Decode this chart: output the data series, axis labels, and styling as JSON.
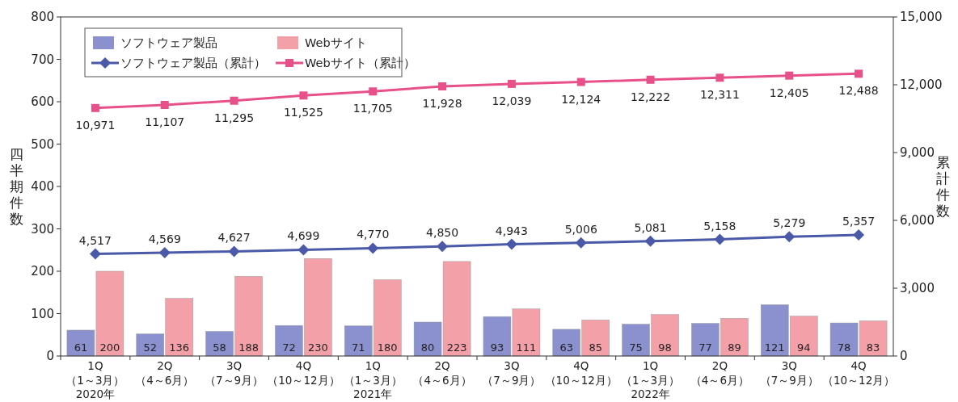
{
  "chart_data": {
    "type": "bar",
    "ylabel": "四半期件数",
    "y2label": "累計件数",
    "categories": [
      "1Q\n（1～3月）\n2020年",
      "2Q\n（4～6月）",
      "3Q\n（7～9月）",
      "4Q\n（10～12月）",
      "1Q\n（1～3月）\n2021年",
      "2Q\n（4～6月）",
      "3Q\n（7～9月）",
      "4Q\n（10～12月）",
      "1Q\n（1～3月）\n2022年",
      "2Q\n（4～6月）",
      "3Q\n（7～9月）",
      "4Q\n（10～12月）"
    ],
    "series": [
      {
        "name": "ソフトウェア製品",
        "color": "#8b90cf",
        "values": [
          61,
          52,
          58,
          72,
          71,
          80,
          93,
          63,
          75,
          77,
          121,
          78
        ]
      },
      {
        "name": "Webサイト",
        "color": "#f4a0a8",
        "values": [
          200,
          136,
          188,
          230,
          180,
          223,
          111,
          85,
          98,
          89,
          94,
          83
        ]
      },
      {
        "name": "ソフトウェア製品（累計）",
        "type": "line",
        "axis": "y2",
        "marker": "diamond",
        "color": "#4a5aa8",
        "values": [
          4517,
          4569,
          4627,
          4699,
          4770,
          4850,
          4943,
          5006,
          5081,
          5158,
          5279,
          5357
        ],
        "value_labels": [
          "4,517",
          "4,569",
          "4,627",
          "4,699",
          "4,770",
          "4,850",
          "4,943",
          "5,006",
          "5,081",
          "5,158",
          "5,279",
          "5,357"
        ]
      },
      {
        "name": "Webサイト（累計）",
        "type": "line",
        "axis": "y2",
        "marker": "square",
        "color": "#e8508a",
        "values": [
          10971,
          11107,
          11295,
          11525,
          11705,
          11928,
          12039,
          12124,
          12222,
          12311,
          12405,
          12488
        ],
        "value_labels": [
          "10,971",
          "11,107",
          "11,295",
          "11,525",
          "11,705",
          "11,928",
          "12,039",
          "12,124",
          "12,222",
          "12,311",
          "12,405",
          "12,488"
        ]
      }
    ],
    "ylim": [
      0,
      800
    ],
    "yticks": [
      0,
      100,
      200,
      300,
      400,
      500,
      600,
      700,
      800
    ],
    "y2lim": [
      0,
      15000
    ],
    "y2ticks": [
      {
        "value": 0,
        "label": "0"
      },
      {
        "value": 3000,
        "label": "3,000"
      },
      {
        "value": 6000,
        "label": "6,000"
      },
      {
        "value": 9000,
        "label": "9,000"
      },
      {
        "value": 12000,
        "label": "12,000"
      },
      {
        "value": 15000,
        "label": "15,000"
      }
    ],
    "data_labels": true,
    "legend": "top left",
    "grid": false
  }
}
